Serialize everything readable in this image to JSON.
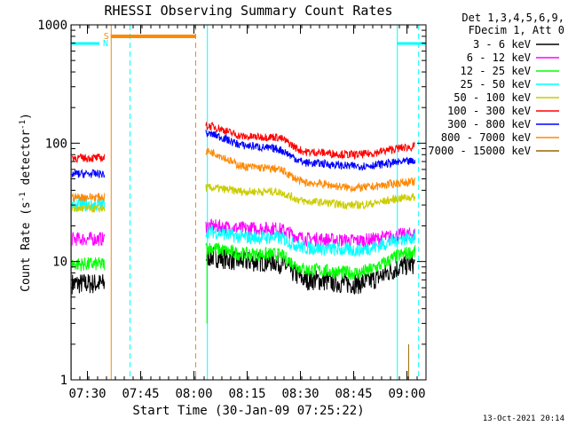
{
  "chart_data": {
    "type": "line",
    "title": "RHESSI Observing Summary Count Rates",
    "xlabel": "Start Time (30-Jan-09 07:25:22)",
    "ylabel_main": "Count Rate (s",
    "ylabel_sup1": "-1",
    "ylabel_mid": " detector",
    "ylabel_sup2": "-1",
    "ylabel_end": ")",
    "yscale": "log",
    "ylim": [
      1,
      1000
    ],
    "xlim_minutes": [
      0,
      100
    ],
    "x_ticks": [
      {
        "label": "07:30",
        "t": 4.63
      },
      {
        "label": "07:45",
        "t": 19.63
      },
      {
        "label": "08:00",
        "t": 34.63
      },
      {
        "label": "08:15",
        "t": 49.63
      },
      {
        "label": "08:30",
        "t": 64.63
      },
      {
        "label": "08:45",
        "t": 79.63
      },
      {
        "label": "09:00",
        "t": 94.63
      }
    ],
    "y_ticks": [
      {
        "label": "1",
        "v": 1
      },
      {
        "label": "10",
        "v": 10
      },
      {
        "label": "100",
        "v": 100
      },
      {
        "label": "1000",
        "v": 1000
      }
    ],
    "legend_header": [
      "Det 1,3,4,5,6,9,",
      "FDecim 1, Att 0"
    ],
    "legend_position": "right",
    "footer_date": "13-Oct-2021 20:14",
    "flag_labels": {
      "saa": "S",
      "night": "N"
    },
    "series": [
      {
        "name": "3 - 6 keV",
        "color": "#000000",
        "pre": 6.5,
        "post": [
          11,
          10,
          10,
          7,
          6.5,
          9.5
        ]
      },
      {
        "name": "6 - 12 keV",
        "color": "#ff00ff",
        "pre": 15.5,
        "post": [
          20,
          19,
          19,
          15.5,
          15,
          17
        ]
      },
      {
        "name": "12 - 25 keV",
        "color": "#00ff00",
        "pre": 9.5,
        "post": [
          13,
          11.5,
          11.5,
          8.5,
          8,
          12
        ]
      },
      {
        "name": "25 - 50 keV",
        "color": "#00ffff",
        "pre": 30,
        "post": [
          18,
          16,
          16,
          13,
          12.5,
          16
        ]
      },
      {
        "name": "50 - 100 keV",
        "color": "#cccc00",
        "pre": 28,
        "post": [
          42,
          39,
          39,
          32,
          30,
          35
        ]
      },
      {
        "name": "100 - 300 keV",
        "color": "#ff0000",
        "pre": 75,
        "post": [
          140,
          113,
          113,
          84,
          80,
          93
        ]
      },
      {
        "name": "300 - 800 keV",
        "color": "#0000ff",
        "pre": 55,
        "post": [
          120,
          95,
          90,
          68,
          64,
          70
        ]
      },
      {
        "name": "800 - 7000 keV",
        "color": "#ff8800",
        "pre": 35,
        "post": [
          85,
          63,
          61,
          46,
          42,
          47
        ]
      },
      {
        "name": "7000 - 15000 keV",
        "color": "#996600",
        "pre": null,
        "post": null
      }
    ],
    "segments_minutes": {
      "pre": [
        0,
        9.5
      ],
      "post": [
        38,
        97
      ]
    },
    "spike_minutes": [
      38.3,
      95.1
    ],
    "saa_interval_minutes": [
      11.2,
      35.0
    ],
    "night_interval_minutes": [
      [
        0,
        8
      ],
      [
        91.8,
        100
      ]
    ],
    "vertical_markers": [
      {
        "t": 0,
        "color": "#00ffff",
        "style": "solid"
      },
      {
        "t": 11.2,
        "color": "#ff8800",
        "style": "solid"
      },
      {
        "t": 16.5,
        "color": "#00ffff",
        "style": "dashed"
      },
      {
        "t": 35.0,
        "color": "#ff8800",
        "style": "dashed"
      },
      {
        "t": 38.3,
        "color": "#00ffff",
        "style": "solid"
      },
      {
        "t": 91.8,
        "color": "#00ffff",
        "style": "solid"
      },
      {
        "t": 97.8,
        "color": "#00ffff",
        "style": "dashed"
      }
    ],
    "grid": false,
    "colors": {
      "axes": "#000000",
      "background": "#ffffff"
    }
  }
}
